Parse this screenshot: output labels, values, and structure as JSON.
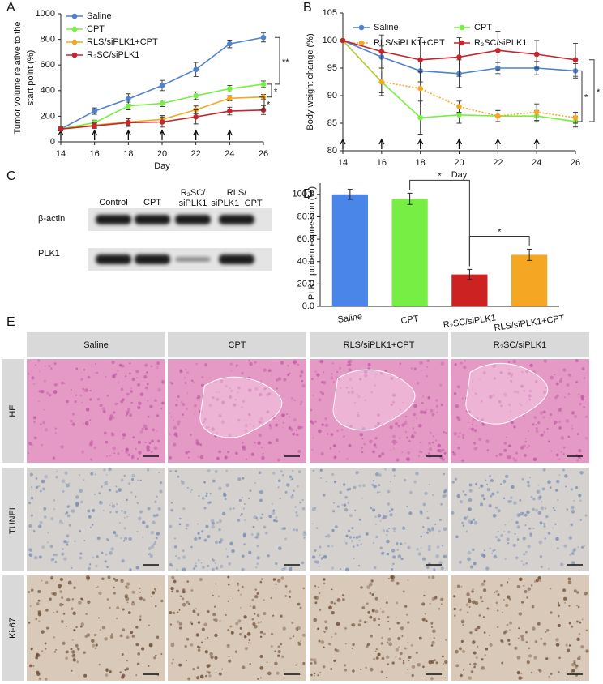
{
  "panel_labels": [
    "A",
    "B",
    "C",
    "D",
    "E"
  ],
  "chart_data": [
    {
      "type": "line",
      "ylabel": [
        "Tumor volume relative to the",
        "start point (%)"
      ],
      "xlabel": "Day",
      "x": [
        14,
        16,
        18,
        20,
        22,
        24,
        26
      ],
      "xlim": [
        14,
        26
      ],
      "xticks": [
        14,
        16,
        18,
        20,
        22,
        24,
        26
      ],
      "ylim": [
        0,
        1000
      ],
      "yticks": [
        0,
        200,
        400,
        600,
        800,
        1000
      ],
      "legend": "upper left",
      "series": [
        {
          "name": "Saline",
          "color": "#4f81d0",
          "values": [
            100,
            240,
            335,
            440,
            565,
            765,
            815
          ],
          "errors": [
            15,
            25,
            40,
            40,
            55,
            30,
            35
          ]
        },
        {
          "name": "CPT",
          "color": "#77ee44",
          "values": [
            100,
            150,
            280,
            300,
            360,
            415,
            450
          ],
          "errors": [
            15,
            20,
            30,
            25,
            30,
            25,
            25
          ]
        },
        {
          "name": "RLS/siPLK1+CPT",
          "color": "#f5a623",
          "values": [
            100,
            130,
            155,
            175,
            250,
            340,
            350
          ],
          "errors": [
            15,
            20,
            25,
            30,
            30,
            20,
            20
          ]
        },
        {
          "name": "R₂SC/siPLK1",
          "color": "#c3262d",
          "values": [
            100,
            125,
            150,
            155,
            195,
            240,
            248
          ],
          "errors": [
            15,
            20,
            30,
            40,
            55,
            30,
            35
          ]
        }
      ],
      "annotations": [
        "**",
        "*",
        "*"
      ]
    },
    {
      "type": "line",
      "ylabel": [
        "Body weight change (%)"
      ],
      "xlabel": "Day",
      "x": [
        14,
        16,
        18,
        20,
        22,
        24,
        26
      ],
      "xlim": [
        14,
        26
      ],
      "xticks": [
        14,
        16,
        18,
        20,
        22,
        24,
        26
      ],
      "ylim": [
        80,
        105
      ],
      "yticks": [
        80,
        85,
        90,
        95,
        100,
        105
      ],
      "legend": "upper left",
      "series": [
        {
          "name": "Saline",
          "color": "#4f81d0",
          "values": [
            100,
            97,
            94.5,
            94,
            95,
            95,
            94.5
          ],
          "errors": [
            0,
            2,
            2,
            2.5,
            1,
            1.2,
            1.3
          ]
        },
        {
          "name": "CPT",
          "color": "#77ee44",
          "values": [
            100,
            92.5,
            86,
            86.5,
            86.3,
            86.3,
            85.3
          ],
          "errors": [
            0,
            2.5,
            3,
            1.5,
            1,
            1,
            1
          ]
        },
        {
          "name": "RLS/siPLK1+CPT",
          "color": "#f5a623",
          "values": [
            100,
            92.5,
            91.3,
            88,
            86.3,
            87,
            86
          ],
          "errors": [
            0,
            2,
            3,
            1,
            1,
            1.5,
            1
          ],
          "linestyle": "dotted"
        },
        {
          "name": "R₂SC/siPLK1",
          "color": "#c3262d",
          "values": [
            100,
            98,
            96.5,
            97,
            98.2,
            97.5,
            96.5
          ],
          "errors": [
            0,
            3,
            4,
            3.5,
            3.5,
            2.5,
            3
          ]
        }
      ],
      "annotations": [
        "*",
        "*"
      ]
    },
    {
      "type": "bar",
      "ylabel": [
        "PLK1 protein expression (%)"
      ],
      "categories": [
        "Saline",
        "CPT",
        "R₂SC/siPLK1",
        "RLS/siPLK1+CPT"
      ],
      "values": [
        100,
        96,
        28.5,
        46
      ],
      "errors": [
        4.5,
        5,
        4.5,
        5
      ],
      "colors": [
        "#4a86e8",
        "#77ee44",
        "#cc2222",
        "#f5a623"
      ],
      "ylim": [
        0,
        110
      ],
      "yticks": [
        {
          "value": 0,
          "label": "0.0"
        },
        {
          "value": 20,
          "label": "20.0"
        },
        {
          "value": 40,
          "label": "40.0"
        },
        {
          "value": 60,
          "label": "60.0"
        },
        {
          "value": 80,
          "label": "80.0"
        },
        {
          "value": 100,
          "label": "100.0"
        }
      ],
      "annotations": [
        "*",
        "*"
      ]
    }
  ],
  "blot": {
    "columns": [
      [
        "Control"
      ],
      [
        "CPT"
      ],
      [
        "R₂SC/",
        "siPLK1"
      ],
      [
        "RLS/",
        "siPLK1+CPT"
      ]
    ],
    "rows": [
      "β-actin",
      "PLK1"
    ]
  },
  "histology": {
    "columns": [
      "Saline",
      "CPT",
      "RLS/siPLK1+CPT",
      "R₂SC/siPLK1"
    ],
    "rows": [
      "HE",
      "TUNEL",
      "Ki-67"
    ]
  }
}
